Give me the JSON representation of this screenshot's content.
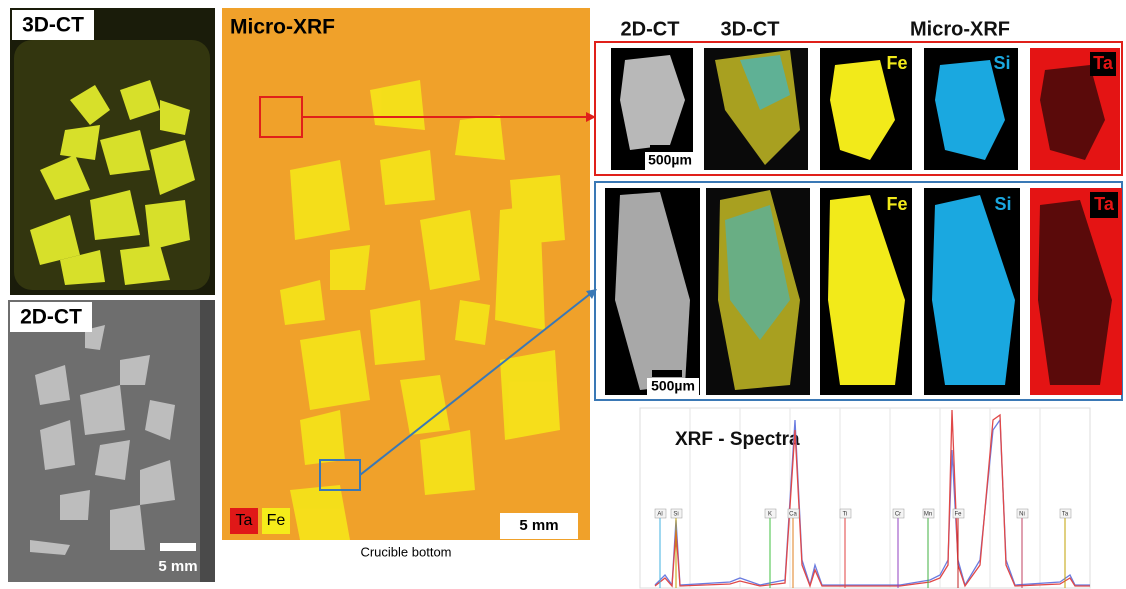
{
  "panels": {
    "ct3d": {
      "label": "3D-CT"
    },
    "ct2d": {
      "label": "2D-CT",
      "scale": "5 mm"
    },
    "xrf_map": {
      "label": "Micro-XRF",
      "legend": [
        "Ta",
        "Fe"
      ],
      "scale": "5 mm",
      "caption": "Crucible bottom"
    },
    "details": {
      "headers": [
        "2D-CT",
        "3D-CT",
        "Micro-XRF"
      ],
      "rows": [
        {
          "scale": "500µm",
          "elements": [
            "Fe",
            "Si",
            "Ta"
          ]
        },
        {
          "scale": "500µm",
          "elements": [
            "Fe",
            "Si",
            "Ta"
          ]
        }
      ]
    },
    "spectra": {
      "title": "XRF - Spectra",
      "peaks": [
        "Al",
        "Si",
        "K",
        "Ca",
        "Ti",
        "Cr",
        "Mn",
        "Fe",
        "Ni",
        "Ta"
      ]
    }
  }
}
